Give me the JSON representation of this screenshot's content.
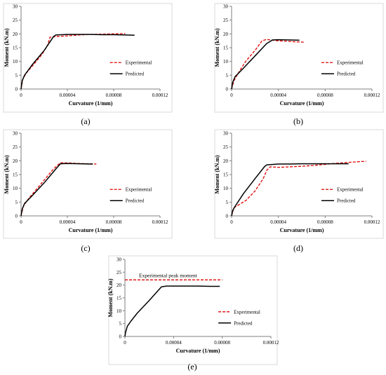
{
  "colors": {
    "experimental": "#e00000",
    "predicted": "#000000",
    "axis": "#7f7f7f",
    "frame": "#d0d0d0"
  },
  "chart_data": [
    {
      "type": "line",
      "panel_label": "(a)",
      "xlabel": "Curvature (1/mm)",
      "ylabel": "Moment (kN.m)",
      "xlim": [
        0,
        0.00012
      ],
      "ylim": [
        0,
        30
      ],
      "xticks": [
        "0",
        "0.00004",
        "0.00008",
        "0.00012"
      ],
      "yticks": [
        "0",
        "5",
        "10",
        "15",
        "20",
        "25",
        "30"
      ],
      "grid": false,
      "legend": "right",
      "series": [
        {
          "name": "Experimental",
          "style": "dashed",
          "x": [
            0,
            1.5e-06,
            4e-06,
            1e-05,
            1.8e-05,
            2.3e-05,
            2.5e-05,
            3e-05,
            4e-05,
            5e-05,
            6e-05,
            7e-05,
            8e-05,
            9e-05
          ],
          "y": [
            0,
            3.5,
            5.5,
            8.5,
            12.5,
            16,
            18.8,
            19,
            19.3,
            19.6,
            19.8,
            19.9,
            20,
            20.1
          ]
        },
        {
          "name": "Predicted",
          "style": "solid",
          "x": [
            0,
            1e-06,
            3e-06,
            1e-05,
            2e-05,
            2.8e-05,
            3e-05,
            4e-05,
            5e-05,
            6e-05,
            7e-05,
            8e-05,
            9e-05,
            9.8e-05
          ],
          "y": [
            0,
            3,
            5,
            9,
            14,
            19,
            19.6,
            19.8,
            19.8,
            19.8,
            19.7,
            19.7,
            19.6,
            19.5
          ]
        }
      ]
    },
    {
      "type": "line",
      "panel_label": "(b)",
      "xlabel": "Curvature (1/mm)",
      "ylabel": "Moment (kN.m)",
      "xlim": [
        0,
        0.00012
      ],
      "ylim": [
        0,
        30
      ],
      "xticks": [
        "0",
        "0.00004",
        "0.00008",
        "0.00012"
      ],
      "yticks": [
        "0",
        "5",
        "10",
        "15",
        "20",
        "25",
        "30"
      ],
      "grid": false,
      "legend": "right",
      "series": [
        {
          "name": "Experimental",
          "style": "dashed",
          "x": [
            0,
            2e-06,
            6e-06,
            1.2e-05,
            2e-05,
            2.6e-05,
            3e-05,
            3.5e-05,
            4e-05,
            4.8e-05,
            5.5e-05,
            6.2e-05
          ],
          "y": [
            0,
            3,
            6,
            10,
            14,
            17.5,
            18,
            17.7,
            17.5,
            17.3,
            17.1,
            17
          ]
        },
        {
          "name": "Predicted",
          "style": "solid",
          "x": [
            0,
            1e-06,
            3e-06,
            1e-05,
            2e-05,
            3e-05,
            3.5e-05,
            4e-05,
            5e-05,
            5.8e-05
          ],
          "y": [
            0,
            2.5,
            4.5,
            7.5,
            12,
            16.5,
            17.8,
            17.9,
            17.8,
            17.7
          ]
        }
      ]
    },
    {
      "type": "line",
      "panel_label": "(c)",
      "xlabel": "Curvature (1/mm)",
      "ylabel": "Moment (kN.m)",
      "xlim": [
        0,
        0.00012
      ],
      "ylim": [
        0,
        30
      ],
      "xticks": [
        "0",
        "0.00004",
        "0.00008",
        "0.00012"
      ],
      "yticks": [
        "0",
        "5",
        "10",
        "15",
        "20",
        "25",
        "30"
      ],
      "grid": false,
      "legend": "right",
      "series": [
        {
          "name": "Experimental",
          "style": "dashed",
          "x": [
            0,
            2e-06,
            6e-06,
            1.2e-05,
            2e-05,
            2.8e-05,
            3.4e-05,
            4e-05,
            5e-05,
            6e-05,
            6.5e-05
          ],
          "y": [
            0,
            3.5,
            6,
            9,
            13,
            17,
            19.3,
            19.2,
            19,
            18.9,
            18.8
          ]
        },
        {
          "name": "Predicted",
          "style": "solid",
          "x": [
            0,
            1e-06,
            3e-06,
            1e-05,
            2e-05,
            3e-05,
            3.4e-05,
            4e-05,
            5e-05,
            6e-05,
            6.2e-05
          ],
          "y": [
            0,
            2.5,
            4.5,
            7.5,
            12,
            17,
            18.9,
            19,
            18.9,
            18.8,
            18.8
          ]
        }
      ]
    },
    {
      "type": "line",
      "panel_label": "(d)",
      "xlabel": "Curvature (1/mm)",
      "ylabel": "Moment (kN.m)",
      "xlim": [
        0,
        0.00012
      ],
      "ylim": [
        0,
        30
      ],
      "xticks": [
        "0",
        "0.00004",
        "0.00008",
        "0.00012"
      ],
      "yticks": [
        "0",
        "5",
        "10",
        "15",
        "20",
        "25",
        "30"
      ],
      "grid": false,
      "legend": "right",
      "series": [
        {
          "name": "Experimental",
          "style": "dashed",
          "x": [
            0,
            2e-06,
            6e-06,
            1.2e-05,
            2e-05,
            2.7e-05,
            3e-05,
            3.3e-05,
            4e-05,
            5e-05,
            6e-05,
            7e-05,
            8e-05,
            9e-05,
            0.0001,
            0.00011,
            0.000115
          ],
          "y": [
            0,
            3,
            4,
            5.5,
            9,
            13.5,
            16.5,
            17.8,
            17.6,
            17.8,
            18,
            18.3,
            18.7,
            19.1,
            19.4,
            19.7,
            19.8
          ]
        },
        {
          "name": "Predicted",
          "style": "solid",
          "x": [
            0,
            1e-06,
            3e-06,
            1e-05,
            2e-05,
            2.8e-05,
            3e-05,
            4e-05,
            5e-05,
            6e-05,
            7e-05,
            8e-05,
            9e-05,
            0.0001
          ],
          "y": [
            0,
            2,
            3.5,
            8,
            13.5,
            17.8,
            18.5,
            18.8,
            18.8,
            18.9,
            18.9,
            18.9,
            18.9,
            18.9
          ]
        }
      ]
    },
    {
      "type": "line",
      "panel_label": "(e)",
      "xlabel": "Curvature (1/mm)",
      "ylabel": "Moment (kN.m)",
      "xlim": [
        0,
        0.00012
      ],
      "ylim": [
        0,
        30
      ],
      "xticks": [
        "0",
        "0.00004",
        "0.00008",
        "0.00012"
      ],
      "yticks": [
        "0",
        "5",
        "10",
        "15",
        "20",
        "25",
        "30"
      ],
      "grid": false,
      "legend": "right",
      "annotation": "Experimental peak moment",
      "series": [
        {
          "name": "Experimental",
          "style": "dashed",
          "x": [
            0,
            8e-05
          ],
          "y": [
            22,
            22
          ]
        },
        {
          "name": "Predicted",
          "style": "solid",
          "x": [
            0,
            5e-07,
            2e-06,
            5e-06,
            1e-05,
            2e-05,
            3e-05,
            3.4e-05,
            4e-05,
            5e-05,
            6e-05,
            7e-05,
            7.8e-05
          ],
          "y": [
            0,
            1.5,
            4,
            6,
            9,
            14,
            19.3,
            19.6,
            19.6,
            19.6,
            19.6,
            19.5,
            19.5
          ]
        }
      ]
    }
  ]
}
